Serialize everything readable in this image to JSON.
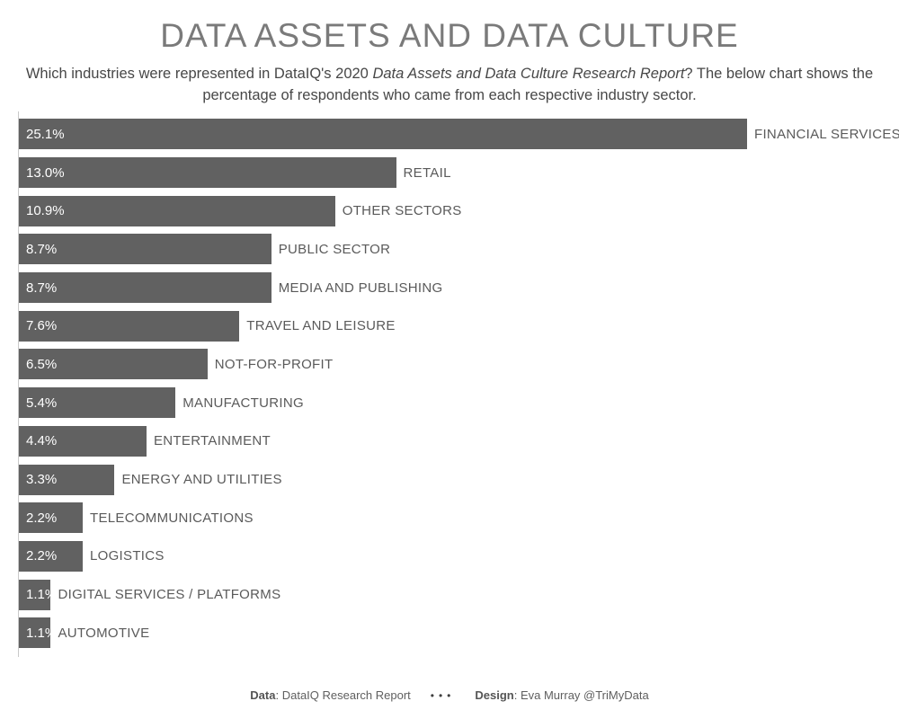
{
  "header": {
    "title": "DATA ASSETS AND DATA CULTURE",
    "subtitle_pre": "Which industries were represented in DataIQ's 2020 ",
    "subtitle_italic": "Data Assets and Data Culture Research Report",
    "subtitle_post": "? The below chart shows the percentage of respondents who came from each respective industry sector."
  },
  "chart_data": {
    "type": "bar",
    "orientation": "horizontal",
    "title": "DATA ASSETS AND DATA CULTURE",
    "xlabel": "",
    "ylabel": "",
    "xlim": [
      0,
      25.1
    ],
    "grid": false,
    "bar_color": "#616161",
    "value_label_color": "#ffffff",
    "category_label_color": "#5a5a5a",
    "value_label_position": "inside-left",
    "category_label_position": "right-of-bar",
    "categories": [
      "FINANCIAL SERVICES",
      "RETAIL",
      "OTHER SECTORS",
      "PUBLIC SECTOR",
      "MEDIA AND PUBLISHING",
      "TRAVEL AND LEISURE",
      "NOT-FOR-PROFIT",
      "MANUFACTURING",
      "ENTERTAINMENT",
      "ENERGY AND UTILITIES",
      "TELECOMMUNICATIONS",
      "LOGISTICS",
      "DIGITAL SERVICES / PLATFORMS",
      "AUTOMOTIVE"
    ],
    "values": [
      25.1,
      13.0,
      10.9,
      8.7,
      8.7,
      7.6,
      6.5,
      5.4,
      4.4,
      3.3,
      2.2,
      2.2,
      1.1,
      1.1
    ],
    "value_labels": [
      "25.1%",
      "13.0%",
      "10.9%",
      "8.7%",
      "8.7%",
      "7.6%",
      "6.5%",
      "5.4%",
      "4.4%",
      "3.3%",
      "2.2%",
      "2.2%",
      "1.1%",
      "1.1%"
    ]
  },
  "footer": {
    "data_label": "Data",
    "data_text": ": DataIQ Research Report",
    "separator": "•••",
    "design_label": "Design",
    "design_text": ": Eva Murray @TriMyData"
  }
}
